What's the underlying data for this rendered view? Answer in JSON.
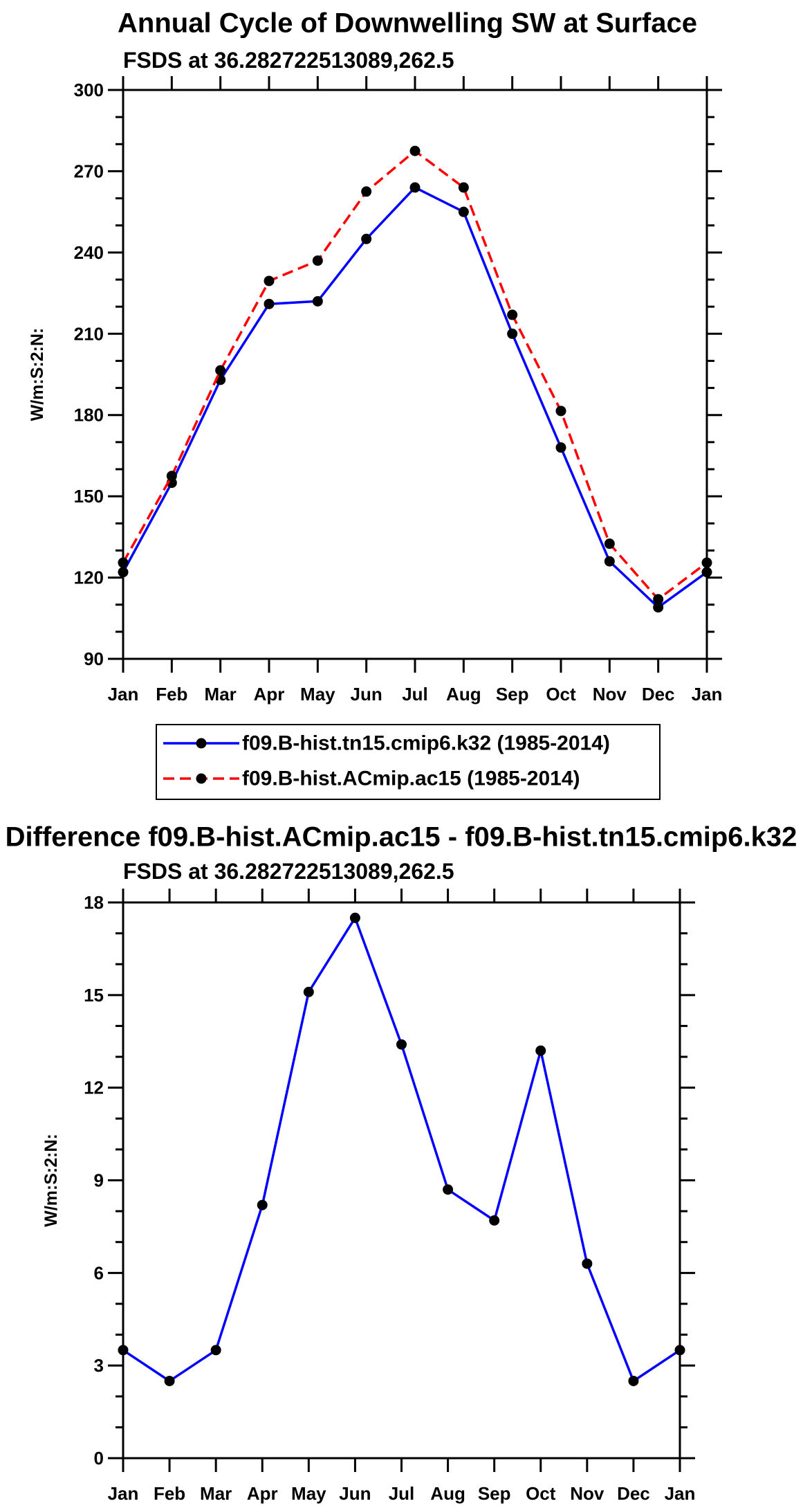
{
  "chart_data": [
    {
      "type": "line",
      "title": "Annual Cycle of Downwelling SW at Surface",
      "subtitle": "FSDS at 36.282722513089,262.5",
      "ylabel": "W/m:S:2:N:",
      "xlabel": "",
      "categories": [
        "Jan",
        "Feb",
        "Mar",
        "Apr",
        "May",
        "Jun",
        "Jul",
        "Aug",
        "Sep",
        "Oct",
        "Nov",
        "Dec",
        "Jan"
      ],
      "ylim": [
        90,
        300
      ],
      "yticks": [
        90,
        120,
        150,
        180,
        210,
        240,
        270,
        300
      ],
      "series": [
        {
          "name": "f09.B-hist.tn15.cmip6.k32 (1985-2014)",
          "color": "#0000ff",
          "dash": "solid",
          "values": [
            122,
            155,
            193,
            221,
            222,
            245,
            264,
            255,
            210,
            168,
            126,
            109,
            122
          ]
        },
        {
          "name": "f09.B-hist.ACmip.ac15 (1985-2014)",
          "color": "#ff0000",
          "dash": "dashed",
          "values": [
            125.5,
            157.5,
            196.5,
            229.5,
            237,
            262.5,
            277.5,
            264,
            217,
            181.5,
            132.5,
            112,
            125.5
          ]
        }
      ]
    },
    {
      "type": "line",
      "title": "Difference f09.B-hist.ACmip.ac15 - f09.B-hist.tn15.cmip6.k32",
      "subtitle": "FSDS at 36.282722513089,262.5",
      "ylabel": "W/m:S:2:N:",
      "xlabel": "",
      "categories": [
        "Jan",
        "Feb",
        "Mar",
        "Apr",
        "May",
        "Jun",
        "Jul",
        "Aug",
        "Sep",
        "Oct",
        "Nov",
        "Dec",
        "Jan"
      ],
      "ylim": [
        0,
        18
      ],
      "yticks": [
        0,
        3,
        6,
        9,
        12,
        15,
        18
      ],
      "series": [
        {
          "name": "difference",
          "color": "#0000ff",
          "dash": "solid",
          "values": [
            3.5,
            2.5,
            3.5,
            8.2,
            15.1,
            17.5,
            13.4,
            8.7,
            7.7,
            13.2,
            6.3,
            2.5,
            3.5
          ]
        }
      ]
    }
  ]
}
